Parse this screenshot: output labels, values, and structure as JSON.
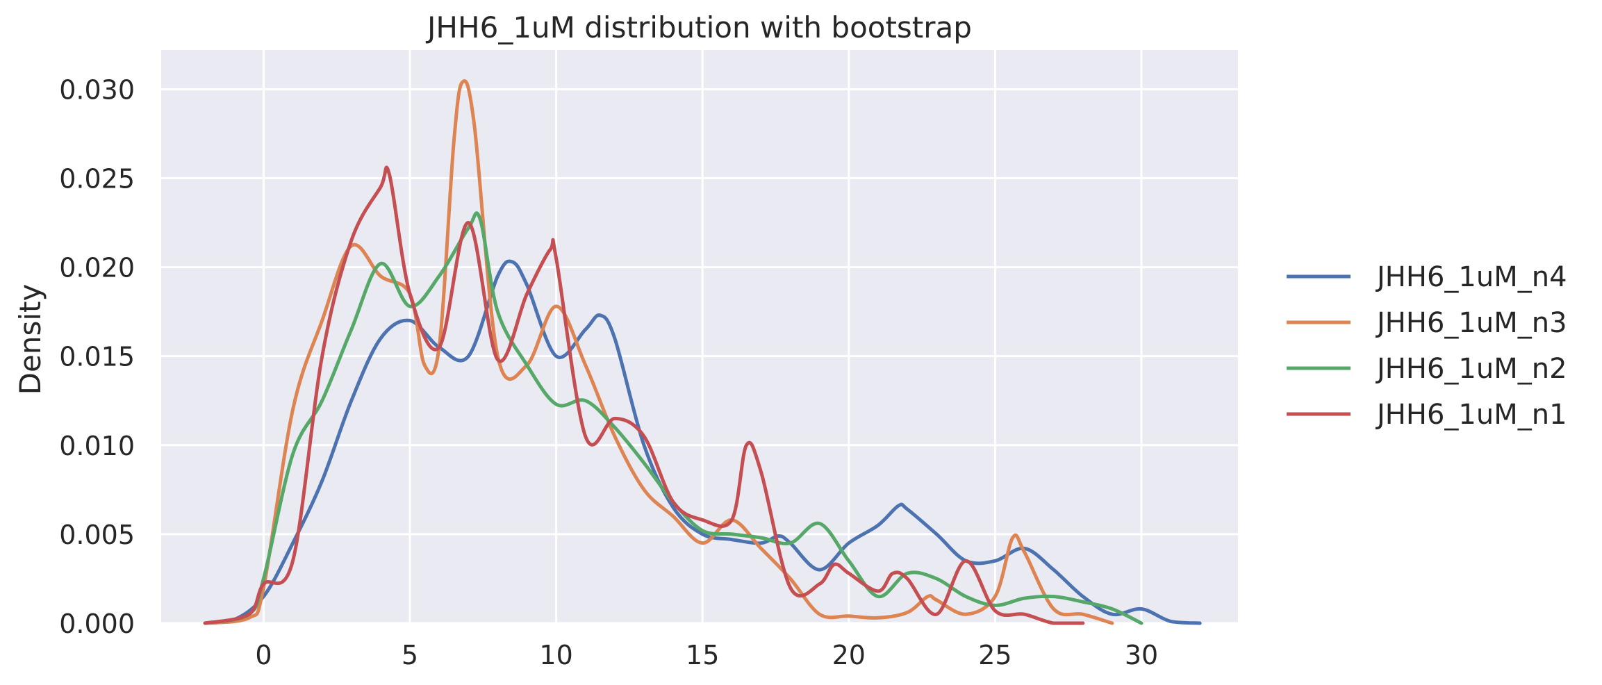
{
  "chart_data": {
    "type": "line",
    "title": "JHH6_1uM distribution with bootstrap",
    "xlabel": "",
    "ylabel": "Density",
    "xlim": [
      -3.5,
      33.3
    ],
    "ylim": [
      0,
      0.0322
    ],
    "xticks": [
      0,
      5,
      10,
      15,
      20,
      25,
      30
    ],
    "xtick_labels": [
      "0",
      "5",
      "10",
      "15",
      "20",
      "25",
      "30"
    ],
    "yticks": [
      0.0,
      0.005,
      0.01,
      0.015,
      0.02,
      0.025,
      0.03
    ],
    "ytick_labels": [
      "0.000",
      "0.005",
      "0.010",
      "0.015",
      "0.020",
      "0.025",
      "0.030"
    ],
    "grid": true,
    "background": "#eaeaf2",
    "legend_position": "right",
    "series": [
      {
        "name": "JHH6_1uM_n4",
        "color": "#4c72b0",
        "points": [
          [
            -2,
            0
          ],
          [
            -1,
            0.0002
          ],
          [
            0,
            0.0015
          ],
          [
            1,
            0.0045
          ],
          [
            2,
            0.008
          ],
          [
            3,
            0.0125
          ],
          [
            4,
            0.016
          ],
          [
            5,
            0.017
          ],
          [
            6,
            0.0155
          ],
          [
            7,
            0.015
          ],
          [
            8,
            0.0195
          ],
          [
            8.5,
            0.0203
          ],
          [
            9,
            0.019
          ],
          [
            10,
            0.015
          ],
          [
            11,
            0.0165
          ],
          [
            11.5,
            0.0173
          ],
          [
            12,
            0.016
          ],
          [
            13,
            0.01
          ],
          [
            14,
            0.0065
          ],
          [
            15,
            0.005
          ],
          [
            16,
            0.0047
          ],
          [
            17,
            0.0045
          ],
          [
            17.6,
            0.0049
          ],
          [
            18,
            0.0045
          ],
          [
            19,
            0.003
          ],
          [
            20,
            0.0045
          ],
          [
            21,
            0.0055
          ],
          [
            21.7,
            0.0066
          ],
          [
            22,
            0.0064
          ],
          [
            23,
            0.005
          ],
          [
            24,
            0.0035
          ],
          [
            25,
            0.0035
          ],
          [
            26,
            0.0042
          ],
          [
            27,
            0.003
          ],
          [
            28,
            0.0015
          ],
          [
            29,
            0.0005
          ],
          [
            30,
            0.0008
          ],
          [
            31,
            0.0001
          ],
          [
            32,
            0
          ]
        ]
      },
      {
        "name": "JHH6_1uM_n3",
        "color": "#dd8452",
        "points": [
          [
            -2,
            0
          ],
          [
            -0.5,
            0.0003
          ],
          [
            0,
            0.002
          ],
          [
            1,
            0.012
          ],
          [
            2,
            0.017
          ],
          [
            3,
            0.0212
          ],
          [
            4,
            0.0195
          ],
          [
            5,
            0.0185
          ],
          [
            5.5,
            0.0145
          ],
          [
            6,
            0.0155
          ],
          [
            6.5,
            0.027
          ],
          [
            6.8,
            0.0304
          ],
          [
            7.2,
            0.028
          ],
          [
            8,
            0.015
          ],
          [
            9,
            0.0145
          ],
          [
            10,
            0.0178
          ],
          [
            11,
            0.0145
          ],
          [
            12,
            0.0105
          ],
          [
            13,
            0.0075
          ],
          [
            14,
            0.006
          ],
          [
            15,
            0.0045
          ],
          [
            16,
            0.0058
          ],
          [
            17,
            0.0042
          ],
          [
            18,
            0.0025
          ],
          [
            19,
            0.0005
          ],
          [
            20,
            0.0004
          ],
          [
            21,
            0.0003
          ],
          [
            22,
            0.0006
          ],
          [
            22.7,
            0.0015
          ],
          [
            23,
            0.0013
          ],
          [
            24,
            0.0005
          ],
          [
            25,
            0.0015
          ],
          [
            25.6,
            0.0048
          ],
          [
            26,
            0.004
          ],
          [
            27,
            0.0008
          ],
          [
            28,
            0.0005
          ],
          [
            29,
            0
          ]
        ]
      },
      {
        "name": "JHH6_1uM_n2",
        "color": "#55a868",
        "points": [
          [
            -2,
            0
          ],
          [
            -0.5,
            0.0005
          ],
          [
            0,
            0.0025
          ],
          [
            1,
            0.0095
          ],
          [
            2,
            0.0125
          ],
          [
            3,
            0.0165
          ],
          [
            4,
            0.0202
          ],
          [
            5,
            0.0178
          ],
          [
            6,
            0.0195
          ],
          [
            7,
            0.0222
          ],
          [
            7.4,
            0.0227
          ],
          [
            8,
            0.0175
          ],
          [
            9,
            0.0145
          ],
          [
            10,
            0.0123
          ],
          [
            11,
            0.0125
          ],
          [
            12,
            0.011
          ],
          [
            13,
            0.009
          ],
          [
            14,
            0.0068
          ],
          [
            15,
            0.0052
          ],
          [
            16,
            0.005
          ],
          [
            17,
            0.0048
          ],
          [
            18,
            0.0045
          ],
          [
            19,
            0.0056
          ],
          [
            20,
            0.0035
          ],
          [
            21,
            0.0015
          ],
          [
            22,
            0.0028
          ],
          [
            23,
            0.0025
          ],
          [
            24,
            0.0015
          ],
          [
            25,
            0.001
          ],
          [
            26,
            0.0014
          ],
          [
            27,
            0.0015
          ],
          [
            28,
            0.0012
          ],
          [
            29,
            0.0008
          ],
          [
            30,
            0
          ]
        ]
      },
      {
        "name": "JHH6_1uM_n1",
        "color": "#c44e52",
        "points": [
          [
            -2,
            0
          ],
          [
            -0.5,
            0.0005
          ],
          [
            0,
            0.0022
          ],
          [
            1,
            0.0035
          ],
          [
            2,
            0.015
          ],
          [
            3,
            0.0215
          ],
          [
            4,
            0.0245
          ],
          [
            4.3,
            0.0252
          ],
          [
            5,
            0.0185
          ],
          [
            6,
            0.0155
          ],
          [
            7,
            0.0225
          ],
          [
            8,
            0.0148
          ],
          [
            9,
            0.0185
          ],
          [
            9.8,
            0.021
          ],
          [
            10,
            0.0205
          ],
          [
            11,
            0.0105
          ],
          [
            12,
            0.0115
          ],
          [
            13,
            0.0105
          ],
          [
            14,
            0.0068
          ],
          [
            15,
            0.0058
          ],
          [
            16,
            0.0058
          ],
          [
            16.5,
            0.01
          ],
          [
            17,
            0.0085
          ],
          [
            18,
            0.002
          ],
          [
            19,
            0.0022
          ],
          [
            19.5,
            0.0033
          ],
          [
            20,
            0.0028
          ],
          [
            21,
            0.0018
          ],
          [
            21.5,
            0.0028
          ],
          [
            22,
            0.0025
          ],
          [
            23,
            0.0005
          ],
          [
            24,
            0.0035
          ],
          [
            25,
            0.0007
          ],
          [
            26,
            0.0005
          ],
          [
            27,
            0
          ],
          [
            28,
            0
          ]
        ]
      }
    ]
  }
}
